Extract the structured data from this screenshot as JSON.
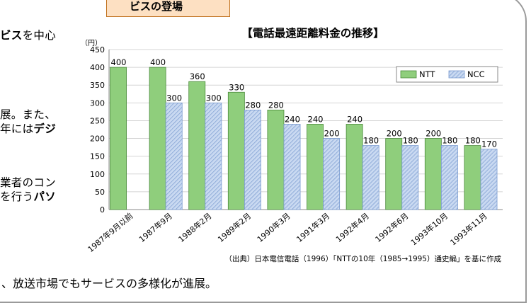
{
  "header": {
    "tab_label": "ビスの登場"
  },
  "body_lines": [
    {
      "pre": "",
      "bold": "ビス",
      "post": "を中心"
    },
    {
      "pre": "展。また、",
      "bold": "",
      "post": ""
    },
    {
      "pre": "年には",
      "bold": "デジ",
      "post": ""
    },
    {
      "pre": "業者のコン",
      "bold": "",
      "post": ""
    },
    {
      "pre": "を行う",
      "bold": "パソ",
      "post": ""
    }
  ],
  "bottom_line": "、放送市場でもサービスの多様化が進展。",
  "colors": {
    "ntt": "#8fce7c",
    "ntt_stroke": "#4a8a3a",
    "ncc": "#c9d9f1",
    "ncc_hatch": "#7a9bd0",
    "header_bg": "#fde0c2",
    "header_border": "#c0711e"
  },
  "chart_data": {
    "type": "bar",
    "title": "【電話最遠距離料金の推移】",
    "unit_label": "（円）",
    "categories": [
      "1987年9月以前",
      "1987年9月",
      "1988年2月",
      "1989年2月",
      "1990年3月",
      "1991年3月",
      "1992年4月",
      "1992年6月",
      "1993年10月",
      "1993年11月"
    ],
    "series": [
      {
        "name": "NTT",
        "values": [
          400,
          400,
          360,
          330,
          280,
          240,
          240,
          200,
          200,
          180
        ]
      },
      {
        "name": "NCC",
        "values": [
          null,
          300,
          300,
          280,
          240,
          200,
          180,
          180,
          180,
          170
        ]
      }
    ],
    "ylim": [
      0,
      450
    ],
    "yticks": [
      0,
      50,
      100,
      150,
      200,
      250,
      300,
      350,
      400,
      450
    ],
    "grid": true,
    "legend_position": "top-right",
    "source_note": "（出典）日本電信電話（1996）「NTTの10年（1985→1995）通史編」を基に作成"
  }
}
